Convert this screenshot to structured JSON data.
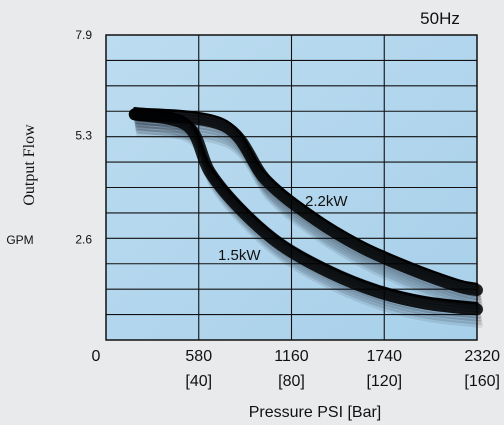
{
  "chart_data": {
    "type": "line",
    "frequency_label": "50Hz",
    "ylabel": "Output Flow",
    "yunit": "GPM",
    "xlabel": "Pressure  PSI  [Bar]",
    "xlim": [
      0,
      2320
    ],
    "ylim": [
      0,
      7.9
    ],
    "y_ticks": [
      {
        "value": 7.9,
        "label": "7.9"
      },
      {
        "value": 5.3,
        "label": "5.3"
      },
      {
        "value": 2.6,
        "label": "2.6"
      }
    ],
    "x_ticks": [
      {
        "value": 0,
        "label": "0",
        "sub": ""
      },
      {
        "value": 580,
        "label": "580",
        "sub": "[40]"
      },
      {
        "value": 1160,
        "label": "1160",
        "sub": "[80]"
      },
      {
        "value": 1740,
        "label": "1740",
        "sub": "[120]"
      },
      {
        "value": 2320,
        "label": "2320",
        "sub": "[160]"
      }
    ],
    "grid": true,
    "series": [
      {
        "name": "2.2kW",
        "x": [
          180,
          740,
          1000,
          1300,
          1600,
          1900,
          2200,
          2320
        ],
        "y": [
          6.0,
          5.7,
          4.3,
          3.3,
          2.55,
          2.0,
          1.55,
          1.45
        ]
      },
      {
        "name": "1.5kW",
        "x": [
          180,
          510,
          650,
          850,
          1100,
          1400,
          1700,
          2000,
          2320
        ],
        "y": [
          6.0,
          5.7,
          4.5,
          3.5,
          2.6,
          1.9,
          1.4,
          1.1,
          0.95
        ]
      }
    ]
  }
}
